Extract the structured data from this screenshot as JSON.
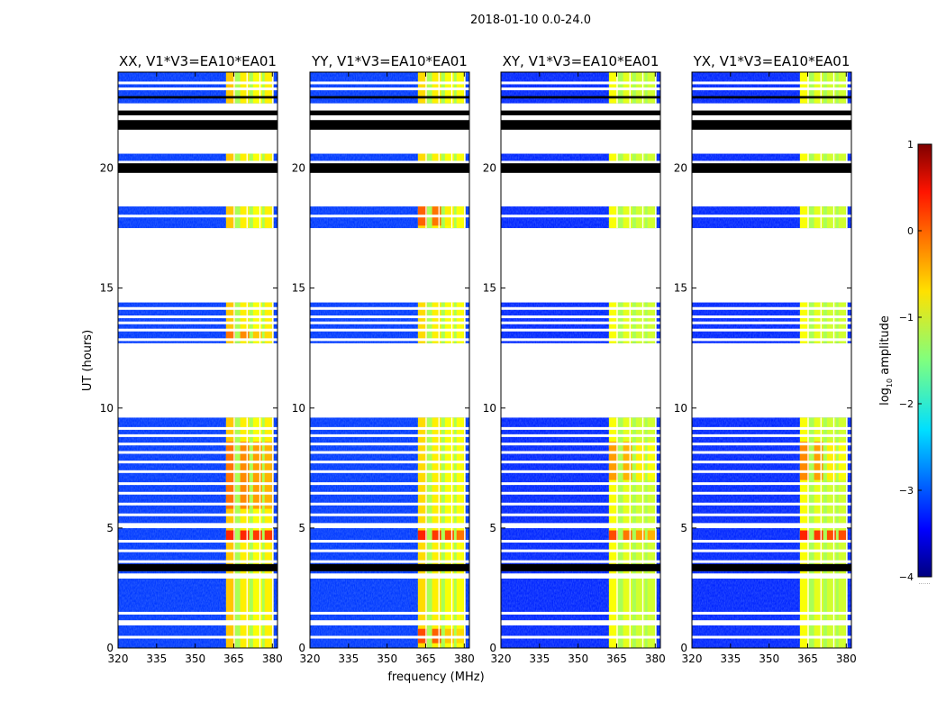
{
  "chart_data": {
    "type": "heatmap",
    "suptitle": "2018-01-10 0.0-24.0",
    "xlabel": "frequency (MHz)",
    "ylabel": "UT (hours)",
    "xlim": [
      320,
      382
    ],
    "ylim": [
      0,
      24
    ],
    "xticks": [
      320,
      335,
      350,
      365,
      380
    ],
    "yticks": [
      0,
      5,
      10,
      15,
      20
    ],
    "colorscale": "jet",
    "colorbar": {
      "label": "log",
      "label_sub": "10",
      "label_rest": " amplitude",
      "range": [
        -4,
        1
      ],
      "ticks": [
        1,
        0,
        -1,
        -2,
        -3,
        -4
      ],
      "extra_label": "......"
    },
    "data_ranges_ut": [
      [
        0,
        9.6
      ],
      [
        12.7,
        14.4
      ],
      [
        17.5,
        18.4
      ],
      [
        20.3,
        20.6
      ],
      [
        22.7,
        24.0
      ]
    ],
    "flag_bands_ut": [
      [
        3.2,
        3.5
      ],
      [
        19.8,
        20.2
      ],
      [
        21.6,
        22.0
      ],
      [
        22.2,
        22.4
      ],
      [
        22.9,
        23.0
      ]
    ],
    "gap_lines_ut": [
      0.45,
      1.0,
      1.1,
      1.45,
      2.95,
      3.05,
      3.6,
      4.05,
      4.45,
      5.05,
      5.15,
      5.55,
      6.0,
      6.45,
      6.85,
      7.35,
      7.75,
      8.15,
      8.5,
      8.85,
      9.15,
      12.85,
      13.25,
      13.55,
      13.8,
      14.15,
      18.0,
      23.3,
      23.55
    ],
    "bright_band_mhz": [
      362,
      380
    ],
    "strong_channel_starts_mhz": [
      362,
      367.5,
      372.5,
      377
    ],
    "channel_width_mhz": 3.5,
    "panels": [
      {
        "title": "XX, V1*V3=EA10*EA01",
        "background_log_amp": -3.1,
        "band_intensity_log_amp": [
          -0.6,
          -0.8,
          -0.9,
          -0.8
        ],
        "hot_periods": [
          {
            "ut": [
              4.4,
              4.9
            ],
            "log_amp": [
              0.2,
              0.2,
              0.1,
              0.1
            ]
          },
          {
            "ut": [
              5.8,
              8.6
            ],
            "log_amp": [
              -0.2,
              -0.3,
              -0.4,
              -0.5
            ]
          },
          {
            "ut": [
              12.8,
              13.2
            ],
            "log_amp": [
              -0.2,
              -0.3,
              -0.6,
              -0.7
            ]
          }
        ]
      },
      {
        "title": "YY, V1*V3=EA10*EA01",
        "background_log_amp": -3.1,
        "band_intensity_log_amp": [
          -0.7,
          -0.8,
          -0.9,
          -0.9
        ],
        "hot_periods": [
          {
            "ut": [
              4.4,
              4.9
            ],
            "log_amp": [
              0.2,
              0.1,
              0.0,
              -0.2
            ]
          },
          {
            "ut": [
              0.2,
              0.8
            ],
            "log_amp": [
              0.0,
              -0.1,
              -0.6,
              -0.7
            ]
          },
          {
            "ut": [
              17.6,
              18.4
            ],
            "log_amp": [
              -0.1,
              -0.2,
              -0.8,
              -0.9
            ]
          }
        ]
      },
      {
        "title": "XY, V1*V3=EA10*EA01",
        "background_log_amp": -3.2,
        "band_intensity_log_amp": [
          -0.9,
          -1.0,
          -1.1,
          -1.1
        ],
        "hot_periods": [
          {
            "ut": [
              4.4,
              4.9
            ],
            "log_amp": [
              0.0,
              -0.2,
              -0.4,
              -0.5
            ]
          },
          {
            "ut": [
              7.0,
              8.6
            ],
            "log_amp": [
              -0.4,
              -0.5,
              -0.8,
              -0.9
            ]
          }
        ]
      },
      {
        "title": "YX, V1*V3=EA10*EA01",
        "background_log_amp": -3.2,
        "band_intensity_log_amp": [
          -0.9,
          -1.0,
          -1.1,
          -1.1
        ],
        "hot_periods": [
          {
            "ut": [
              4.4,
              4.9
            ],
            "log_amp": [
              0.2,
              0.1,
              0.0,
              0.0
            ]
          },
          {
            "ut": [
              7.0,
              8.6
            ],
            "log_amp": [
              -0.3,
              -0.4,
              -0.8,
              -0.9
            ]
          }
        ]
      }
    ]
  }
}
